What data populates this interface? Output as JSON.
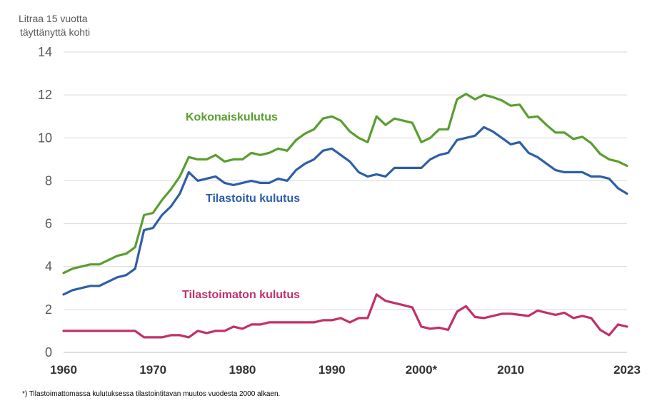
{
  "chart_data": {
    "type": "line",
    "ylabel_lines": [
      "Litraa 15 vuotta",
      "täyttänyttä  kohti"
    ],
    "ylim": [
      0,
      14
    ],
    "yticks": [
      0,
      2,
      4,
      6,
      8,
      10,
      12,
      14
    ],
    "xlim": [
      1960,
      2023
    ],
    "xticks": [
      {
        "value": 1960,
        "label": "1960"
      },
      {
        "value": 1970,
        "label": "1970"
      },
      {
        "value": 1980,
        "label": "1980"
      },
      {
        "value": 1990,
        "label": "1990"
      },
      {
        "value": 2000,
        "label": "2000*"
      },
      {
        "value": 2010,
        "label": "2010"
      },
      {
        "value": 2023,
        "label": "2023"
      }
    ],
    "grid": "horizontal",
    "x": [
      1960,
      1961,
      1962,
      1963,
      1964,
      1965,
      1966,
      1967,
      1968,
      1969,
      1970,
      1971,
      1972,
      1973,
      1974,
      1975,
      1976,
      1977,
      1978,
      1979,
      1980,
      1981,
      1982,
      1983,
      1984,
      1985,
      1986,
      1987,
      1988,
      1989,
      1990,
      1991,
      1992,
      1993,
      1994,
      1995,
      1996,
      1997,
      1998,
      1999,
      2000,
      2001,
      2002,
      2003,
      2004,
      2005,
      2006,
      2007,
      2008,
      2009,
      2010,
      2011,
      2012,
      2013,
      2014,
      2015,
      2016,
      2017,
      2018,
      2019,
      2020,
      2021,
      2022,
      2023
    ],
    "series": [
      {
        "name": "Kokonaiskulutus",
        "color": "#5a9e2f",
        "values": [
          3.7,
          3.9,
          4.0,
          4.1,
          4.1,
          4.3,
          4.5,
          4.6,
          4.9,
          6.4,
          6.5,
          7.1,
          7.6,
          8.2,
          9.1,
          9.0,
          9.0,
          9.2,
          8.9,
          9.0,
          9.0,
          9.3,
          9.2,
          9.3,
          9.5,
          9.4,
          9.9,
          10.2,
          10.4,
          10.9,
          11.0,
          10.8,
          10.3,
          10.0,
          9.8,
          11.0,
          10.6,
          10.9,
          10.8,
          10.7,
          9.8,
          10.0,
          10.4,
          10.4,
          11.8,
          12.05,
          11.8,
          12.0,
          11.9,
          11.75,
          11.5,
          11.55,
          10.95,
          11.0,
          10.6,
          10.25,
          10.25,
          9.95,
          10.05,
          9.75,
          9.25,
          9.0,
          8.9,
          8.7
        ]
      },
      {
        "name": "Tilastoitu kulutus",
        "color": "#2e5fa7",
        "values": [
          2.7,
          2.9,
          3.0,
          3.1,
          3.1,
          3.3,
          3.5,
          3.6,
          3.9,
          5.7,
          5.8,
          6.4,
          6.8,
          7.4,
          8.4,
          8.0,
          8.1,
          8.2,
          7.9,
          7.8,
          7.9,
          8.0,
          7.9,
          7.9,
          8.1,
          8.0,
          8.5,
          8.8,
          9.0,
          9.4,
          9.5,
          9.2,
          8.9,
          8.4,
          8.2,
          8.3,
          8.2,
          8.6,
          8.6,
          8.6,
          8.6,
          9.0,
          9.2,
          9.3,
          9.9,
          10.0,
          10.1,
          10.5,
          10.3,
          10.0,
          9.7,
          9.8,
          9.3,
          9.1,
          8.8,
          8.5,
          8.4,
          8.4,
          8.4,
          8.2,
          8.2,
          8.1,
          7.65,
          7.4
        ]
      },
      {
        "name": "Tilastoimaton kulutus",
        "color": "#c2306a",
        "values": [
          1.0,
          1.0,
          1.0,
          1.0,
          1.0,
          1.0,
          1.0,
          1.0,
          1.0,
          0.7,
          0.7,
          0.7,
          0.8,
          0.8,
          0.7,
          1.0,
          0.9,
          1.0,
          1.0,
          1.2,
          1.1,
          1.3,
          1.3,
          1.4,
          1.4,
          1.4,
          1.4,
          1.4,
          1.4,
          1.5,
          1.5,
          1.6,
          1.4,
          1.6,
          1.6,
          2.7,
          2.4,
          2.3,
          2.2,
          2.1,
          1.2,
          1.1,
          1.15,
          1.05,
          1.9,
          2.15,
          1.65,
          1.6,
          1.7,
          1.8,
          1.8,
          1.75,
          1.7,
          1.95,
          1.85,
          1.75,
          1.85,
          1.6,
          1.7,
          1.6,
          1.05,
          0.8,
          1.3,
          1.2
        ]
      }
    ],
    "footnote": "*) Tilastoimattomassa  kulutuksessa tilastointitavan muutos vuodesta 2000 alkaen."
  }
}
